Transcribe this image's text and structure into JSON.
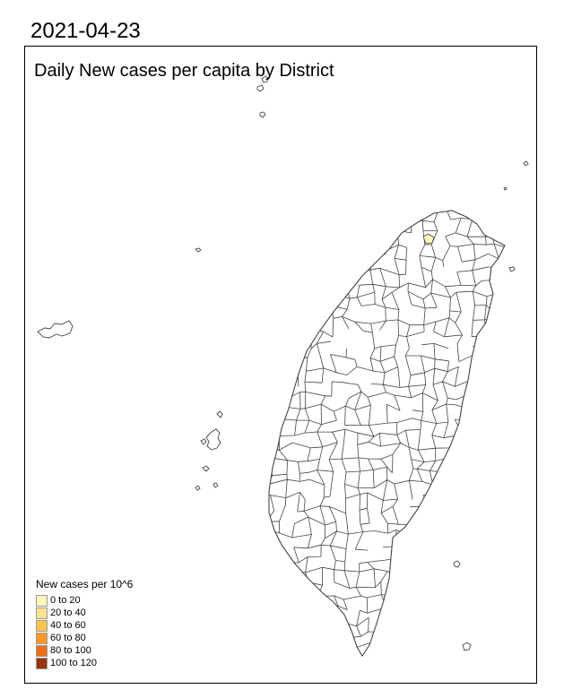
{
  "date": "2021-04-23",
  "map_title": "Daily New cases per capita by District",
  "legend": {
    "title": "New cases per 10^6",
    "items": [
      {
        "label": "0 to 20",
        "color": "#FFF7BC"
      },
      {
        "label": "20 to 40",
        "color": "#FEE391"
      },
      {
        "label": "40 to 60",
        "color": "#FEC44F"
      },
      {
        "label": "60 to 80",
        "color": "#FE9929"
      },
      {
        "label": "80 to 100",
        "color": "#EC7014"
      },
      {
        "label": "100 to 120",
        "color": "#993404"
      }
    ]
  },
  "colors": {
    "district_fill": "#FFFFFF",
    "district_border": "#444444",
    "highlight_fill": "#FFF7BC"
  }
}
